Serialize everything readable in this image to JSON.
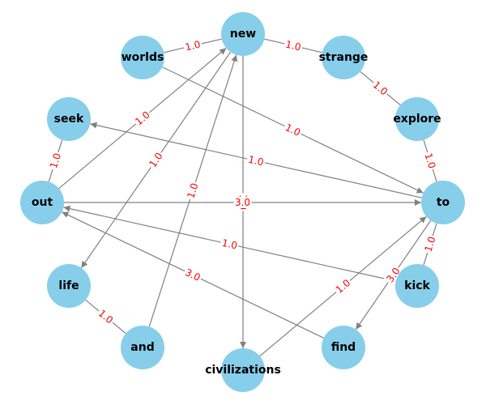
{
  "graph": {
    "type": "directed-graph",
    "colors": {
      "node": "#87ceeb",
      "edge": "#808080",
      "edge_label": "#ff0000",
      "node_label": "#000000"
    },
    "nodes": [
      {
        "id": "new",
        "label": "new"
      },
      {
        "id": "strange",
        "label": "strange"
      },
      {
        "id": "explore",
        "label": "explore"
      },
      {
        "id": "to",
        "label": "to"
      },
      {
        "id": "kick",
        "label": "kick"
      },
      {
        "id": "find",
        "label": "find"
      },
      {
        "id": "civilizations",
        "label": "civilizations"
      },
      {
        "id": "and",
        "label": "and"
      },
      {
        "id": "life",
        "label": "life"
      },
      {
        "id": "out",
        "label": "out"
      },
      {
        "id": "seek",
        "label": "seek"
      },
      {
        "id": "worlds",
        "label": "worlds"
      }
    ],
    "edges": [
      {
        "source": "worlds",
        "target": "new",
        "weight": "1.0",
        "directed": false
      },
      {
        "source": "new",
        "target": "strange",
        "weight": "1.0",
        "directed": false
      },
      {
        "source": "strange",
        "target": "explore",
        "weight": "1.0",
        "directed": false
      },
      {
        "source": "explore",
        "target": "to",
        "weight": "1.0",
        "directed": false
      },
      {
        "source": "to",
        "target": "kick",
        "weight": "1.0",
        "directed": false
      },
      {
        "source": "worlds",
        "target": "to",
        "weight": "1.0",
        "directed": true
      },
      {
        "source": "out",
        "target": "new",
        "weight": "1.0",
        "directed": true
      },
      {
        "source": "and",
        "target": "new",
        "weight": "1.0",
        "directed": true
      },
      {
        "source": "new",
        "target": "life",
        "weight": "1.0",
        "directed": true
      },
      {
        "source": "new",
        "target": "civilizations",
        "weight": "1.0",
        "directed": true
      },
      {
        "source": "to",
        "target": "seek",
        "weight": "1.0",
        "directed": true
      },
      {
        "source": "out",
        "target": "to",
        "weight": "3.0",
        "directed": true
      },
      {
        "source": "kick",
        "target": "out",
        "weight": "1.0",
        "directed": true
      },
      {
        "source": "find",
        "target": "out",
        "weight": "3.0",
        "directed": true
      },
      {
        "source": "civilizations",
        "target": "to",
        "weight": "1.0",
        "directed": true
      },
      {
        "source": "to",
        "target": "find",
        "weight": "3.0",
        "directed": true
      },
      {
        "source": "seek",
        "target": "out",
        "weight": "1.0",
        "directed": false
      },
      {
        "source": "life",
        "target": "and",
        "weight": "1.0",
        "directed": false
      }
    ]
  }
}
